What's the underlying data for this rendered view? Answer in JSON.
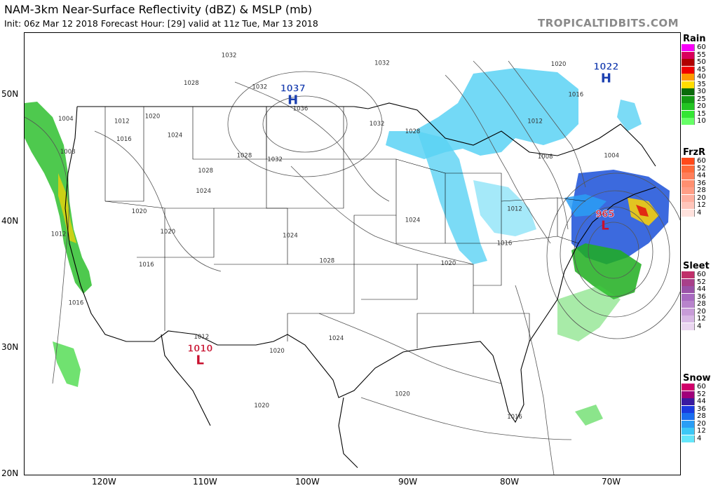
{
  "header": {
    "title": "NAM-3km Near-Surface Reflectivity (dBZ) & MSLP (mb)",
    "subtitle": "Init: 06z Mar 12 2018   Forecast Hour: [29]   valid at 11z Tue, Mar 13 2018",
    "brand": "TROPICALTIDBITS.COM"
  },
  "axes": {
    "latitudes": [
      "50N",
      "40N",
      "30N",
      "20N"
    ],
    "longitudes": [
      "120W",
      "110W",
      "100W",
      "90W",
      "80W",
      "70W"
    ]
  },
  "pressure_centers": [
    {
      "type": "H",
      "value": "1037",
      "color": "#1a3fb0",
      "lon": -100.5,
      "lat": 49.1
    },
    {
      "type": "H",
      "value": "1022",
      "color": "#1a3fb0",
      "lon": -69.8,
      "lat": 50.8
    },
    {
      "type": "L",
      "value": "965",
      "color": "#c8102e",
      "lon": -69.9,
      "lat": 39.2
    },
    {
      "type": "L",
      "value": "1010",
      "color": "#c8102e",
      "lon": -109.6,
      "lat": 28.6
    }
  ],
  "isobar_labels": [
    {
      "text": "1032",
      "lon": -107.5,
      "lat": 51.8
    },
    {
      "text": "1032",
      "lon": -92.5,
      "lat": 51.2
    },
    {
      "text": "1032",
      "lon": -104.5,
      "lat": 49.3
    },
    {
      "text": "1028",
      "lon": -111.2,
      "lat": 49.6
    },
    {
      "text": "1036",
      "lon": -100.5,
      "lat": 47.6
    },
    {
      "text": "1032",
      "lon": -93.0,
      "lat": 46.4
    },
    {
      "text": "1028",
      "lon": -89.5,
      "lat": 45.8
    },
    {
      "text": "1032",
      "lon": -103.0,
      "lat": 43.6
    },
    {
      "text": "1028",
      "lon": -106.0,
      "lat": 43.9
    },
    {
      "text": "1028",
      "lon": -109.8,
      "lat": 42.7
    },
    {
      "text": "1024",
      "lon": -110.0,
      "lat": 41.1
    },
    {
      "text": "1020",
      "lon": -116.3,
      "lat": 39.5
    },
    {
      "text": "1020",
      "lon": -113.5,
      "lat": 37.9
    },
    {
      "text": "1016",
      "lon": -115.6,
      "lat": 35.3
    },
    {
      "text": "1016",
      "lon": -122.5,
      "lat": 32.3
    },
    {
      "text": "1016",
      "lon": -117.8,
      "lat": 45.2
    },
    {
      "text": "1012",
      "lon": -118.0,
      "lat": 46.6
    },
    {
      "text": "1020",
      "lon": -115.0,
      "lat": 47.0
    },
    {
      "text": "1024",
      "lon": -112.8,
      "lat": 45.5
    },
    {
      "text": "1004",
      "lon": -123.5,
      "lat": 46.8
    },
    {
      "text": "1008",
      "lon": -123.3,
      "lat": 44.2
    },
    {
      "text": "1012",
      "lon": -124.2,
      "lat": 37.7
    },
    {
      "text": "1024",
      "lon": -101.5,
      "lat": 37.6
    },
    {
      "text": "1028",
      "lon": -97.9,
      "lat": 35.6
    },
    {
      "text": "1024",
      "lon": -89.5,
      "lat": 38.8
    },
    {
      "text": "1020",
      "lon": -86.0,
      "lat": 35.4
    },
    {
      "text": "1016",
      "lon": -80.5,
      "lat": 37.0
    },
    {
      "text": "1012",
      "lon": -79.5,
      "lat": 39.7
    },
    {
      "text": "1008",
      "lon": -76.5,
      "lat": 43.8
    },
    {
      "text": "1004",
      "lon": -70.0,
      "lat": 43.9
    },
    {
      "text": "1012",
      "lon": -77.5,
      "lat": 46.6
    },
    {
      "text": "1016",
      "lon": -73.5,
      "lat": 48.7
    },
    {
      "text": "1020",
      "lon": -75.2,
      "lat": 51.1
    },
    {
      "text": "1024",
      "lon": -97.0,
      "lat": 29.5
    },
    {
      "text": "1020",
      "lon": -90.5,
      "lat": 25.1
    },
    {
      "text": "1016",
      "lon": -79.5,
      "lat": 23.3
    },
    {
      "text": "1020",
      "lon": -102.8,
      "lat": 28.5
    },
    {
      "text": "1020",
      "lon": -104.3,
      "lat": 24.2
    },
    {
      "text": "1012",
      "lon": -110.2,
      "lat": 29.6
    }
  ],
  "legend": [
    {
      "name": "Rain",
      "levels": [
        "60",
        "55",
        "50",
        "45",
        "40",
        "35",
        "30",
        "25",
        "20",
        "15",
        "10"
      ],
      "colors": [
        "#f700f7",
        "#d9005c",
        "#b00000",
        "#f00000",
        "#ff9900",
        "#ffdd00",
        "#0a6b0a",
        "#139a13",
        "#22c422",
        "#33e633",
        "#66ff66"
      ]
    },
    {
      "name": "FrzR",
      "levels": [
        "60",
        "52",
        "44",
        "36",
        "28",
        "20",
        "12",
        "4"
      ],
      "colors": [
        "#ff4a1a",
        "#ff6a3a",
        "#ff7f5a",
        "#ff8f70",
        "#ff9e86",
        "#ffb0a0",
        "#ffc6bb",
        "#ffe2dd"
      ]
    },
    {
      "name": "Sleet",
      "levels": [
        "60",
        "52",
        "44",
        "36",
        "28",
        "20",
        "12",
        "4"
      ],
      "colors": [
        "#c0306a",
        "#a8408a",
        "#9a52a8",
        "#a86ac0",
        "#b884cc",
        "#c89cd8",
        "#d8b8e4",
        "#ead6f0"
      ]
    },
    {
      "name": "Snow",
      "levels": [
        "60",
        "52",
        "44",
        "36",
        "28",
        "20",
        "12",
        "4"
      ],
      "colors": [
        "#d0006a",
        "#a0007a",
        "#3a1aa0",
        "#1a3ae0",
        "#1a6ef0",
        "#2a9ef4",
        "#3cc8f6",
        "#64e6fa"
      ]
    }
  ]
}
